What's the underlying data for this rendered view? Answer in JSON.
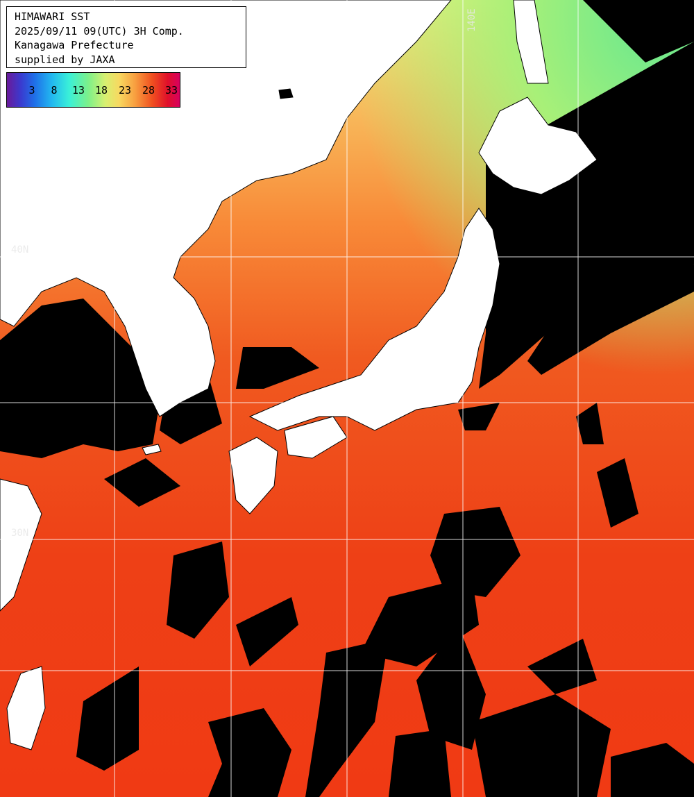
{
  "title": {
    "line1": "HIMAWARI SST",
    "line2": "2025/09/11 09(UTC) 3H Comp.",
    "line3": "Kanagawa Prefecture",
    "line4": "supplied by JAXA"
  },
  "legend": {
    "ticks": [
      "3",
      "8",
      "13",
      "18",
      "23",
      "28",
      "33"
    ],
    "unit": "",
    "colors": [
      "#6a1a9a",
      "#3a3acf",
      "#1f6fe8",
      "#22b8f0",
      "#3af0d8",
      "#7cf08a",
      "#d8f070",
      "#f8d860",
      "#f8a040",
      "#f05020",
      "#e0102a",
      "#d80060"
    ]
  },
  "grid_labels": {
    "lat_40": "40N",
    "lat_30": "30N",
    "lon_140": "140E"
  },
  "colors": {
    "land": "#ffffff",
    "cloud_mask": "#000000",
    "grid": "#ffffff",
    "sea_warm": "#f04018",
    "sea_mid": "#f88030",
    "sea_cool": "#f8e070",
    "sea_cold": "#9cf078"
  }
}
